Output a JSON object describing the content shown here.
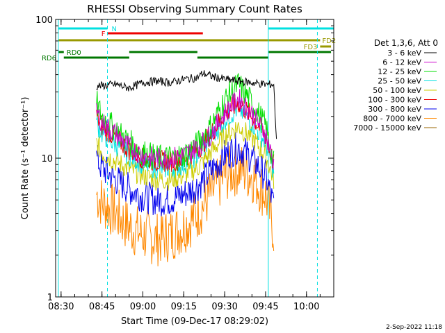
{
  "chart_data": {
    "type": "line",
    "title": "RHESSI Observing Summary Count Rates",
    "xlabel": "Start Time (09-Dec-17 08:29:02)",
    "ylabel": "Count Rate (s⁻¹ detector⁻¹)",
    "x_range": [
      "08:28",
      "10:10"
    ],
    "ylim": [
      1,
      100
    ],
    "yscale": "log",
    "x_ticks": [
      "08:30",
      "08:45",
      "09:00",
      "09:15",
      "09:30",
      "09:45",
      "10:00"
    ],
    "y_ticks": [
      "1",
      "10",
      "100"
    ],
    "legend_title": "Det 1,3,6, Att 0",
    "legend_position": "right",
    "timestamp": "2-Sep-2022 11:18",
    "series": [
      {
        "name": "3 - 6 keV",
        "color": "#000000",
        "x": [
          "08:43",
          "08:50",
          "08:55",
          "09:00",
          "09:05",
          "09:10",
          "09:15",
          "09:20",
          "09:22",
          "09:25",
          "09:30",
          "09:35",
          "09:40",
          "09:45",
          "09:48",
          "09:49"
        ],
        "y": [
          33,
          34,
          32,
          35,
          36,
          35,
          37,
          38,
          41,
          39,
          37,
          36,
          35,
          34,
          34,
          13
        ]
      },
      {
        "name": "6 - 12 keV",
        "color": "#cc00cc",
        "x": [
          "08:43",
          "08:45",
          "08:50",
          "08:55",
          "09:00",
          "09:05",
          "09:10",
          "09:15",
          "09:20",
          "09:25",
          "09:30",
          "09:35",
          "09:40",
          "09:45",
          "09:48"
        ],
        "y": [
          22,
          18,
          15,
          12,
          10.5,
          10,
          10,
          10.5,
          12,
          15,
          21,
          27,
          21,
          15,
          9
        ]
      },
      {
        "name": "12 - 25 keV",
        "color": "#00dd00",
        "x": [
          "08:43",
          "08:45",
          "08:50",
          "08:55",
          "09:00",
          "09:05",
          "09:10",
          "09:15",
          "09:20",
          "09:25",
          "09:30",
          "09:35",
          "09:40",
          "09:45",
          "09:48"
        ],
        "y": [
          25,
          20,
          16,
          13,
          11,
          10,
          10,
          10.5,
          12.5,
          17,
          26,
          34,
          25,
          17,
          9
        ]
      },
      {
        "name": "25 - 50 keV",
        "color": "#00e0e0",
        "x": [
          "08:43",
          "08:45",
          "08:50",
          "08:55",
          "09:00",
          "09:05",
          "09:10",
          "09:15",
          "09:20",
          "09:25",
          "09:30",
          "09:35",
          "09:40",
          "09:45",
          "09:48"
        ],
        "y": [
          18,
          15,
          12.5,
          10.5,
          9,
          8.5,
          8.5,
          9,
          10.5,
          14,
          19,
          23,
          18,
          13,
          8
        ]
      },
      {
        "name": "50 - 100 keV",
        "color": "#cccc00",
        "x": [
          "08:43",
          "08:45",
          "08:50",
          "08:55",
          "09:00",
          "09:05",
          "09:10",
          "09:15",
          "09:20",
          "09:25",
          "09:30",
          "09:35",
          "09:40",
          "09:45",
          "09:48"
        ],
        "y": [
          13,
          11,
          9.5,
          8.3,
          7.5,
          7,
          7,
          7.5,
          8.5,
          11,
          14.5,
          17,
          14,
          10.5,
          7
        ]
      },
      {
        "name": "100 - 300 keV",
        "color": "#ee0000",
        "x": [
          "08:43",
          "08:45",
          "08:50",
          "08:55",
          "09:00",
          "09:05",
          "09:10",
          "09:15",
          "09:20",
          "09:25",
          "09:30",
          "09:35",
          "09:40",
          "09:45",
          "09:48"
        ],
        "y": [
          20,
          17,
          14,
          11.5,
          10,
          9.5,
          9.5,
          10,
          11.5,
          15,
          21,
          25,
          20,
          14.5,
          9
        ]
      },
      {
        "name": "300 - 800 keV",
        "color": "#0000ee",
        "x": [
          "08:43",
          "08:45",
          "08:50",
          "08:55",
          "09:00",
          "09:05",
          "09:10",
          "09:15",
          "09:20",
          "09:25",
          "09:30",
          "09:35",
          "09:40",
          "09:45",
          "09:48"
        ],
        "y": [
          10,
          8.5,
          7,
          6,
          5.3,
          5,
          5,
          5.5,
          6.3,
          8,
          10.5,
          12,
          10,
          7.5,
          4.5
        ]
      },
      {
        "name": "800 - 7000 keV",
        "color": "#ff8800",
        "x": [
          "08:43",
          "08:45",
          "08:50",
          "08:55",
          "09:00",
          "09:05",
          "09:10",
          "09:15",
          "09:20",
          "09:25",
          "09:30",
          "09:35",
          "09:40",
          "09:45",
          "09:48"
        ],
        "y": [
          5.5,
          4.8,
          4,
          3.2,
          2.8,
          2.6,
          2.8,
          3.2,
          4,
          5.5,
          7.5,
          8.5,
          7.5,
          5.5,
          3
        ]
      },
      {
        "name": "7000 - 15000 keV",
        "color": "#996600",
        "x": [],
        "y": []
      }
    ],
    "flag_bars": [
      {
        "label": "N",
        "color": "#00e0e0",
        "label_side": "end",
        "segments": [
          [
            "08:29",
            "08:47"
          ],
          [
            "09:46",
            "10:10"
          ]
        ]
      },
      {
        "label": "F",
        "color": "#ee0000",
        "label_side": "start",
        "segments": [
          [
            "08:47",
            "09:22"
          ]
        ]
      },
      {
        "label": "FD2",
        "color": "#999900",
        "label_side": "end",
        "segments": [
          [
            "08:29",
            "10:05"
          ]
        ]
      },
      {
        "label": "FD3",
        "color": "#999900",
        "label_side": "end",
        "segments": [
          [
            "10:05",
            "10:09"
          ]
        ]
      },
      {
        "label": "RD0",
        "color": "#007700",
        "label_side": "end",
        "segments": [
          [
            "08:29",
            "08:31"
          ],
          [
            "08:55",
            "09:20"
          ],
          [
            "09:46",
            "10:09"
          ]
        ]
      },
      {
        "label": "RD6",
        "color": "#007700",
        "label_side": "start",
        "segments": [
          [
            "08:31",
            "08:55"
          ],
          [
            "09:20",
            "09:46"
          ]
        ]
      }
    ],
    "vertical_markers": [
      {
        "time": "08:29",
        "color": "#00e0e0",
        "style": "solid"
      },
      {
        "time": "08:47",
        "color": "#00e0e0",
        "style": "dashed"
      },
      {
        "time": "09:46",
        "color": "#00e0e0",
        "style": "solid"
      },
      {
        "time": "10:04",
        "color": "#00e0e0",
        "style": "dashed"
      }
    ]
  }
}
